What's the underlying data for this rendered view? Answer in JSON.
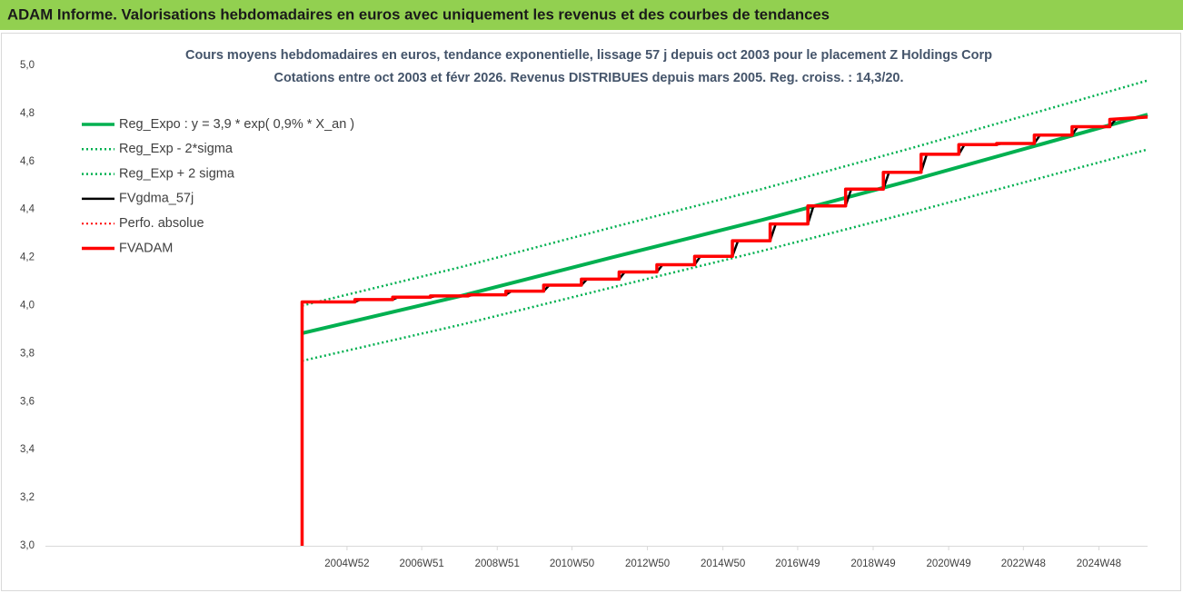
{
  "page": {
    "title": "ADAM Informe. Valorisations hebdomadaires en euros avec uniquement les revenus et des courbes de tendances"
  },
  "chart_data": {
    "type": "line",
    "title": "Cours moyens hebdomadaires en euros, tendance exponentielle, lissage 57 j depuis oct 2003 pour le placement Z Holdings Corp",
    "subtitle": "Cotations entre oct 2003 et févr 2026. Revenus DISTRIBUES depuis mars 2005. Reg. croiss. : 14,3/20.",
    "xlim": [
      1997,
      2026.2
    ],
    "xticks": [
      {
        "value": 2004.99,
        "label": "2004W52"
      },
      {
        "value": 2006.97,
        "label": "2006W51"
      },
      {
        "value": 2008.97,
        "label": "2008W51"
      },
      {
        "value": 2010.95,
        "label": "2010W50"
      },
      {
        "value": 2012.95,
        "label": "2012W50"
      },
      {
        "value": 2014.95,
        "label": "2014W50"
      },
      {
        "value": 2016.93,
        "label": "2016W49"
      },
      {
        "value": 2018.93,
        "label": "2018W49"
      },
      {
        "value": 2020.93,
        "label": "2020W49"
      },
      {
        "value": 2022.91,
        "label": "2022W48"
      },
      {
        "value": 2024.91,
        "label": "2024W48"
      }
    ],
    "ylim": [
      3.0,
      5.0
    ],
    "yticks": [
      {
        "value": 3.0,
        "label": "3,0"
      },
      {
        "value": 3.2,
        "label": "3,2"
      },
      {
        "value": 3.4,
        "label": "3,4"
      },
      {
        "value": 3.6,
        "label": "3,6"
      },
      {
        "value": 3.8,
        "label": "3,8"
      },
      {
        "value": 4.0,
        "label": "4,0"
      },
      {
        "value": 4.2,
        "label": "4,2"
      },
      {
        "value": 4.4,
        "label": "4,4"
      },
      {
        "value": 4.6,
        "label": "4,6"
      },
      {
        "value": 4.8,
        "label": "4,8"
      },
      {
        "value": 5.0,
        "label": "5,0"
      }
    ],
    "legend": "upper left",
    "series": [
      {
        "name": "Reg_Expo : y = 3,9 * exp( 0,9% *  X_an )",
        "color": "#00b050",
        "linestyle": "solid",
        "linewidth": 4,
        "x": [
          2003.8,
          2008,
          2012,
          2016,
          2020,
          2026.2
        ],
        "values": [
          3.885,
          4.04,
          4.2,
          4.357,
          4.524,
          4.795
        ]
      },
      {
        "name": "Reg_Exp - 2*sigma",
        "color": "#00b050",
        "linestyle": "dotted",
        "linewidth": 2.5,
        "x": [
          2003.8,
          2008,
          2012,
          2016,
          2020,
          2026.2
        ],
        "values": [
          3.77,
          3.92,
          4.075,
          4.228,
          4.39,
          4.65
        ]
      },
      {
        "name": "Reg_Exp + 2 sigma",
        "color": "#00b050",
        "linestyle": "dotted",
        "linewidth": 2.5,
        "x": [
          2003.8,
          2008,
          2012,
          2016,
          2020,
          2026.2
        ],
        "values": [
          4.0,
          4.16,
          4.325,
          4.486,
          4.658,
          4.937
        ]
      },
      {
        "name": "FVgdma_57j",
        "color": "#000000",
        "linestyle": "solid",
        "linewidth": 2.5,
        "x": [
          2003.8,
          2005.2,
          2005.35,
          2006.2,
          2006.35,
          2007.2,
          2007.35,
          2008.2,
          2008.35,
          2009.2,
          2009.35,
          2010.2,
          2010.35,
          2011.2,
          2011.35,
          2012.2,
          2012.35,
          2013.2,
          2013.35,
          2014.2,
          2014.35,
          2015.2,
          2015.35,
          2016.2,
          2016.35,
          2017.2,
          2017.35,
          2018.2,
          2018.35,
          2019.2,
          2019.35,
          2020.2,
          2020.35,
          2021.2,
          2021.35,
          2022.2,
          2022.35,
          2023.2,
          2023.35,
          2024.2,
          2024.35,
          2025.2,
          2025.35,
          2026.2
        ],
        "values": [
          4.015,
          4.015,
          4.025,
          4.025,
          4.035,
          4.035,
          4.04,
          4.04,
          4.045,
          4.045,
          4.06,
          4.06,
          4.085,
          4.085,
          4.11,
          4.11,
          4.14,
          4.14,
          4.17,
          4.17,
          4.205,
          4.205,
          4.27,
          4.27,
          4.34,
          4.34,
          4.415,
          4.415,
          4.485,
          4.485,
          4.555,
          4.555,
          4.63,
          4.63,
          4.67,
          4.67,
          4.675,
          4.675,
          4.71,
          4.71,
          4.745,
          4.745,
          4.775,
          4.785
        ]
      },
      {
        "name": "Perfo. absolue",
        "color": "#ff0000",
        "linestyle": "dotted",
        "linewidth": 2,
        "x": [],
        "values": []
      },
      {
        "name": "FVADAM",
        "color": "#ff0000",
        "linestyle": "solid",
        "linewidth": 3.5,
        "x": [
          2003.8,
          2003.8,
          2005.2,
          2005.2,
          2006.2,
          2006.2,
          2007.2,
          2007.2,
          2008.2,
          2008.2,
          2009.2,
          2009.2,
          2010.2,
          2010.2,
          2011.2,
          2011.2,
          2012.2,
          2012.2,
          2013.2,
          2013.2,
          2014.2,
          2014.2,
          2015.2,
          2015.2,
          2016.2,
          2016.2,
          2017.2,
          2017.2,
          2018.2,
          2018.2,
          2019.2,
          2019.2,
          2020.2,
          2020.2,
          2021.2,
          2021.2,
          2022.2,
          2022.2,
          2023.2,
          2023.2,
          2024.2,
          2024.2,
          2025.2,
          2025.2,
          2026.2
        ],
        "values": [
          3.0,
          4.015,
          4.015,
          4.025,
          4.025,
          4.035,
          4.035,
          4.04,
          4.04,
          4.045,
          4.045,
          4.06,
          4.06,
          4.085,
          4.085,
          4.11,
          4.11,
          4.14,
          4.14,
          4.17,
          4.17,
          4.205,
          4.205,
          4.27,
          4.27,
          4.34,
          4.34,
          4.415,
          4.415,
          4.485,
          4.485,
          4.555,
          4.555,
          4.63,
          4.63,
          4.67,
          4.67,
          4.675,
          4.675,
          4.71,
          4.71,
          4.745,
          4.745,
          4.775,
          4.785
        ]
      }
    ]
  }
}
